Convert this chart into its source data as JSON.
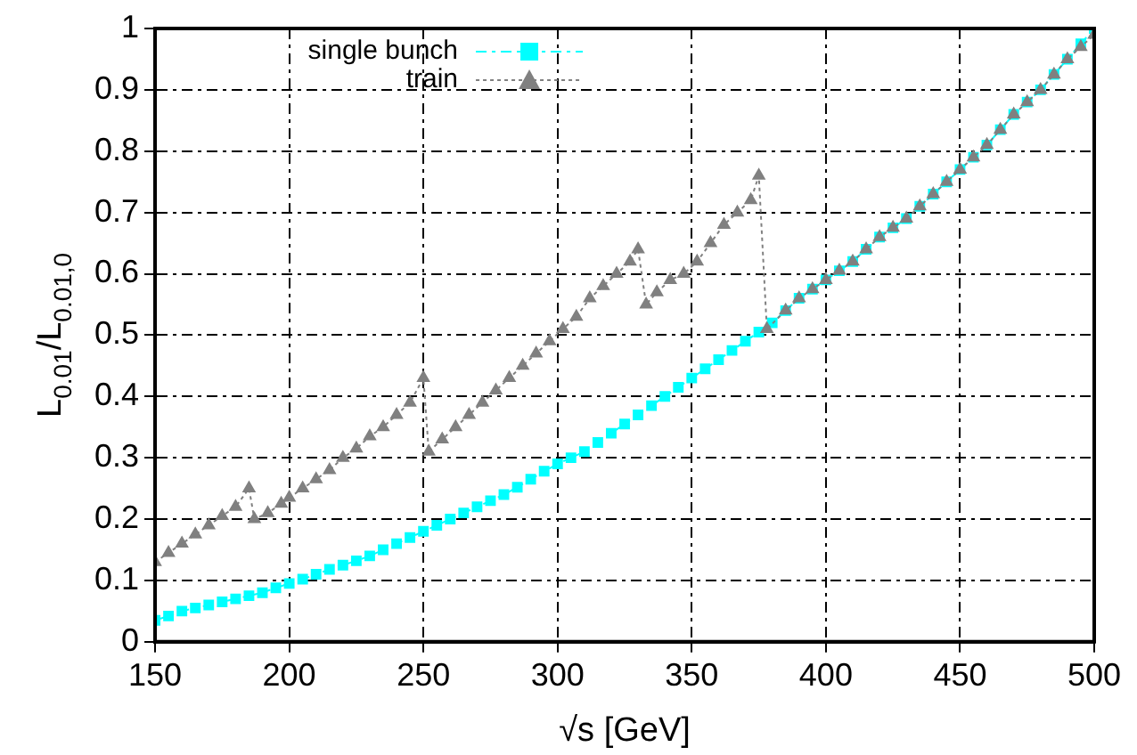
{
  "chart_data": {
    "type": "line",
    "xlabel": "√s [GeV]",
    "ylabel": "L$_{0.01}$/L$_{0.01,0}$",
    "xlim": [
      150,
      500
    ],
    "xticks": [
      150,
      200,
      250,
      300,
      350,
      400,
      450,
      500
    ],
    "ylim": [
      0,
      1
    ],
    "yticks": [
      0,
      0.1,
      0.2,
      0.3,
      0.4,
      0.5,
      0.6,
      0.7,
      0.8,
      0.9,
      1
    ],
    "grid": true,
    "legend": "top",
    "series": [
      {
        "name": "single bunch",
        "color": "#00ffff",
        "marker": "square",
        "line_style": "dashed",
        "x": [
          150,
          155,
          160,
          165,
          170,
          175,
          180,
          185,
          190,
          195,
          200,
          205,
          210,
          215,
          220,
          225,
          230,
          235,
          240,
          245,
          250,
          255,
          260,
          265,
          270,
          275,
          280,
          285,
          290,
          295,
          300,
          305,
          310,
          315,
          320,
          325,
          330,
          335,
          340,
          345,
          350,
          355,
          360,
          365,
          370,
          375,
          380,
          385,
          390,
          395,
          400,
          405,
          410,
          415,
          420,
          425,
          430,
          435,
          440,
          445,
          450,
          455,
          460,
          465,
          470,
          475,
          480,
          485,
          490,
          495,
          500
        ],
        "values": [
          0.035,
          0.042,
          0.05,
          0.055,
          0.06,
          0.065,
          0.07,
          0.075,
          0.08,
          0.088,
          0.095,
          0.102,
          0.11,
          0.118,
          0.125,
          0.132,
          0.14,
          0.15,
          0.16,
          0.17,
          0.18,
          0.19,
          0.2,
          0.21,
          0.22,
          0.23,
          0.24,
          0.252,
          0.265,
          0.278,
          0.29,
          0.3,
          0.31,
          0.325,
          0.34,
          0.355,
          0.37,
          0.385,
          0.4,
          0.415,
          0.43,
          0.445,
          0.46,
          0.475,
          0.49,
          0.505,
          0.52,
          0.54,
          0.56,
          0.575,
          0.59,
          0.605,
          0.62,
          0.64,
          0.66,
          0.675,
          0.69,
          0.71,
          0.73,
          0.75,
          0.77,
          0.79,
          0.81,
          0.835,
          0.86,
          0.88,
          0.9,
          0.925,
          0.95,
          0.975,
          1
        ]
      },
      {
        "name": "train",
        "color": "#808080",
        "marker": "triangle",
        "line_style": "dotted",
        "x": [
          150,
          155,
          160,
          165,
          170,
          175,
          180,
          185,
          187,
          192,
          197,
          200,
          205,
          210,
          215,
          220,
          225,
          230,
          235,
          240,
          245,
          250,
          252,
          257,
          262,
          267,
          272,
          277,
          282,
          287,
          292,
          297,
          302,
          307,
          312,
          317,
          322,
          327,
          330,
          333,
          337,
          342,
          347,
          352,
          357,
          362,
          367,
          372,
          375,
          378,
          385,
          390,
          395,
          400,
          405,
          410,
          415,
          420,
          425,
          430,
          435,
          440,
          445,
          450,
          455,
          460,
          465,
          470,
          475,
          480,
          485,
          490,
          495,
          500
        ],
        "values": [
          0.13,
          0.145,
          0.16,
          0.175,
          0.19,
          0.205,
          0.22,
          0.25,
          0.2,
          0.21,
          0.225,
          0.235,
          0.25,
          0.265,
          0.28,
          0.3,
          0.315,
          0.335,
          0.35,
          0.37,
          0.39,
          0.43,
          0.31,
          0.33,
          0.35,
          0.37,
          0.39,
          0.41,
          0.43,
          0.45,
          0.47,
          0.49,
          0.51,
          0.53,
          0.56,
          0.58,
          0.6,
          0.62,
          0.64,
          0.55,
          0.57,
          0.59,
          0.6,
          0.62,
          0.65,
          0.68,
          0.7,
          0.72,
          0.76,
          0.51,
          0.54,
          0.56,
          0.575,
          0.59,
          0.605,
          0.62,
          0.64,
          0.66,
          0.675,
          0.69,
          0.71,
          0.73,
          0.75,
          0.77,
          0.79,
          0.81,
          0.835,
          0.86,
          0.88,
          0.9,
          0.925,
          0.95,
          0.97,
          0.99
        ]
      }
    ]
  }
}
